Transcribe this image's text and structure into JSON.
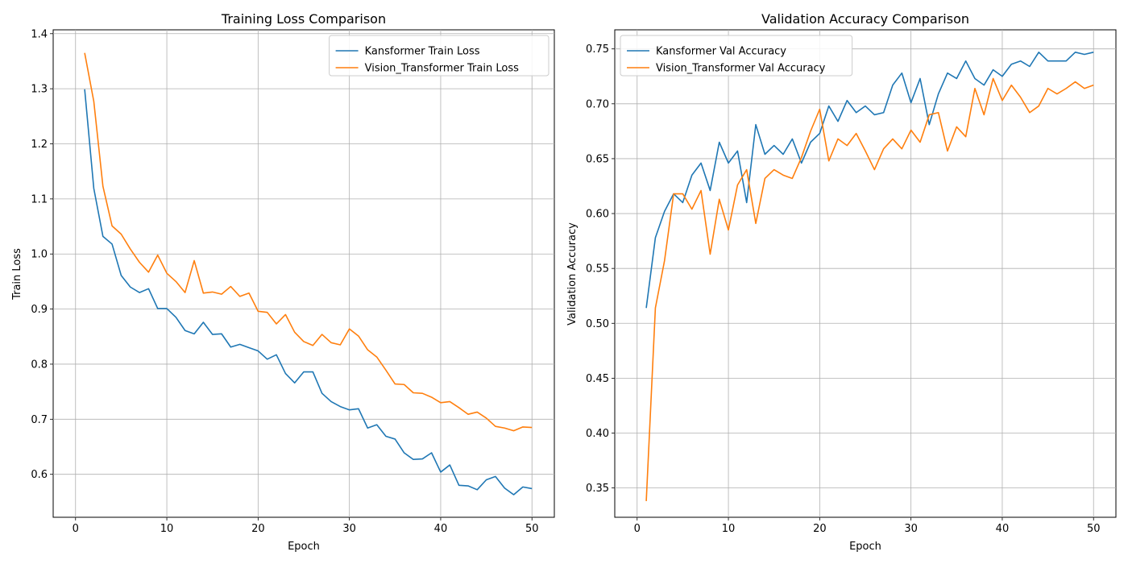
{
  "chart_data": [
    {
      "type": "line",
      "title": "Training Loss Comparison",
      "xlabel": "Epoch",
      "ylabel": "Train Loss",
      "xlim": [
        -2.45,
        52.45
      ],
      "ylim": [
        0.522,
        1.407
      ],
      "xticks": [
        0,
        10,
        20,
        30,
        40,
        50
      ],
      "yticks": [
        0.6,
        0.7,
        0.8,
        0.9,
        1.0,
        1.1,
        1.2,
        1.3,
        1.4
      ],
      "ytick_labels": [
        "0.6",
        "0.7",
        "0.8",
        "0.9",
        "1.0",
        "1.1",
        "1.2",
        "1.3",
        "1.4"
      ],
      "grid": true,
      "legend_position": "upper right",
      "x": [
        1,
        2,
        3,
        4,
        5,
        6,
        7,
        8,
        9,
        10,
        11,
        12,
        13,
        14,
        15,
        16,
        17,
        18,
        19,
        20,
        21,
        22,
        23,
        24,
        25,
        26,
        27,
        28,
        29,
        30,
        31,
        32,
        33,
        34,
        35,
        36,
        37,
        38,
        39,
        40,
        41,
        42,
        43,
        44,
        45,
        46,
        47,
        48,
        49,
        50
      ],
      "series": [
        {
          "name": "Kansformer Train Loss",
          "color": "#1f77b4",
          "values": [
            1.299,
            1.119,
            1.032,
            1.018,
            0.961,
            0.94,
            0.93,
            0.937,
            0.901,
            0.901,
            0.885,
            0.861,
            0.855,
            0.876,
            0.854,
            0.855,
            0.831,
            0.836,
            0.83,
            0.824,
            0.809,
            0.817,
            0.783,
            0.766,
            0.786,
            0.786,
            0.747,
            0.732,
            0.723,
            0.717,
            0.719,
            0.684,
            0.69,
            0.669,
            0.664,
            0.639,
            0.627,
            0.628,
            0.639,
            0.604,
            0.617,
            0.58,
            0.579,
            0.572,
            0.59,
            0.596,
            0.575,
            0.563,
            0.577,
            0.574
          ]
        },
        {
          "name": "Vision_Transformer Train Loss",
          "color": "#ff7f0e",
          "values": [
            1.365,
            1.277,
            1.123,
            1.051,
            1.036,
            1.009,
            0.985,
            0.967,
            0.998,
            0.965,
            0.95,
            0.93,
            0.988,
            0.929,
            0.931,
            0.927,
            0.941,
            0.923,
            0.929,
            0.896,
            0.894,
            0.873,
            0.89,
            0.858,
            0.841,
            0.834,
            0.854,
            0.839,
            0.835,
            0.864,
            0.851,
            0.826,
            0.813,
            0.789,
            0.764,
            0.763,
            0.748,
            0.747,
            0.74,
            0.73,
            0.732,
            0.721,
            0.709,
            0.713,
            0.702,
            0.687,
            0.684,
            0.679,
            0.686,
            0.685
          ]
        }
      ]
    },
    {
      "type": "line",
      "title": "Validation Accuracy Comparison",
      "xlabel": "Epoch",
      "ylabel": "Validation Accuracy",
      "xlim": [
        -2.45,
        52.45
      ],
      "ylim": [
        0.3233,
        0.7674
      ],
      "xticks": [
        0,
        10,
        20,
        30,
        40,
        50
      ],
      "yticks": [
        0.35,
        0.4,
        0.45,
        0.5,
        0.55,
        0.6,
        0.65,
        0.7,
        0.75
      ],
      "ytick_labels": [
        "0.35",
        "0.40",
        "0.45",
        "0.50",
        "0.55",
        "0.60",
        "0.65",
        "0.70",
        "0.75"
      ],
      "grid": true,
      "legend_position": "upper left",
      "x": [
        1,
        2,
        3,
        4,
        5,
        6,
        7,
        8,
        9,
        10,
        11,
        12,
        13,
        14,
        15,
        16,
        17,
        18,
        19,
        20,
        21,
        22,
        23,
        24,
        25,
        26,
        27,
        28,
        29,
        30,
        31,
        32,
        33,
        34,
        35,
        36,
        37,
        38,
        39,
        40,
        41,
        42,
        43,
        44,
        45,
        46,
        47,
        48,
        49,
        50
      ],
      "series": [
        {
          "name": "Kansformer Val Accuracy",
          "color": "#1f77b4",
          "values": [
            0.514,
            0.578,
            0.602,
            0.618,
            0.61,
            0.635,
            0.646,
            0.621,
            0.665,
            0.646,
            0.657,
            0.61,
            0.681,
            0.654,
            0.662,
            0.654,
            0.668,
            0.646,
            0.665,
            0.673,
            0.698,
            0.684,
            0.703,
            0.692,
            0.698,
            0.69,
            0.692,
            0.717,
            0.728,
            0.701,
            0.723,
            0.681,
            0.709,
            0.728,
            0.723,
            0.739,
            0.723,
            0.717,
            0.731,
            0.725,
            0.736,
            0.739,
            0.734,
            0.747,
            0.739,
            0.739,
            0.739,
            0.747,
            0.745,
            0.747
          ]
        },
        {
          "name": "Vision_Transformer Val Accuracy",
          "color": "#ff7f0e",
          "values": [
            0.338,
            0.514,
            0.557,
            0.618,
            0.618,
            0.604,
            0.621,
            0.563,
            0.613,
            0.585,
            0.626,
            0.64,
            0.591,
            0.632,
            0.64,
            0.635,
            0.632,
            0.651,
            0.675,
            0.695,
            0.648,
            0.668,
            0.662,
            0.673,
            0.657,
            0.64,
            0.659,
            0.668,
            0.659,
            0.676,
            0.665,
            0.69,
            0.692,
            0.657,
            0.679,
            0.67,
            0.714,
            0.69,
            0.723,
            0.703,
            0.717,
            0.706,
            0.692,
            0.698,
            0.714,
            0.709,
            0.714,
            0.72,
            0.714,
            0.717
          ]
        }
      ]
    }
  ]
}
